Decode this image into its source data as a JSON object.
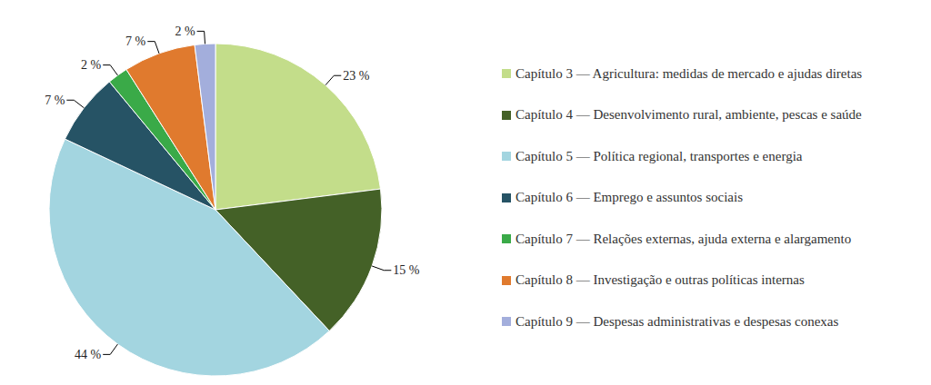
{
  "chart_data": {
    "type": "pie",
    "categories": [
      "Capítulo 3 — Agricultura: medidas de mercado e ajudas diretas",
      "Capítulo 4 — Desenvolvimento rural, ambiente, pescas e saúde",
      "Capítulo 5 — Política regional, transportes e energia",
      "Capítulo 6 — Emprego e assuntos sociais",
      "Capítulo 7 — Relações externas, ajuda externa e alargamento",
      "Capítulo 8 — Investigação e outras políticas internas",
      "Capítulo 9 — Despesas administrativas e despesas conexas"
    ],
    "values": [
      23,
      15,
      44,
      7,
      2,
      7,
      2
    ],
    "value_labels": [
      "23 %",
      "15 %",
      "44 %",
      "7 %",
      "2 %",
      "7 %",
      "2 %"
    ],
    "colors": [
      "#c3dd8a",
      "#446127",
      "#a3d5e0",
      "#265365",
      "#3aaa48",
      "#e07a2e",
      "#a3aedc"
    ],
    "data_labels": true,
    "legend": "right"
  }
}
